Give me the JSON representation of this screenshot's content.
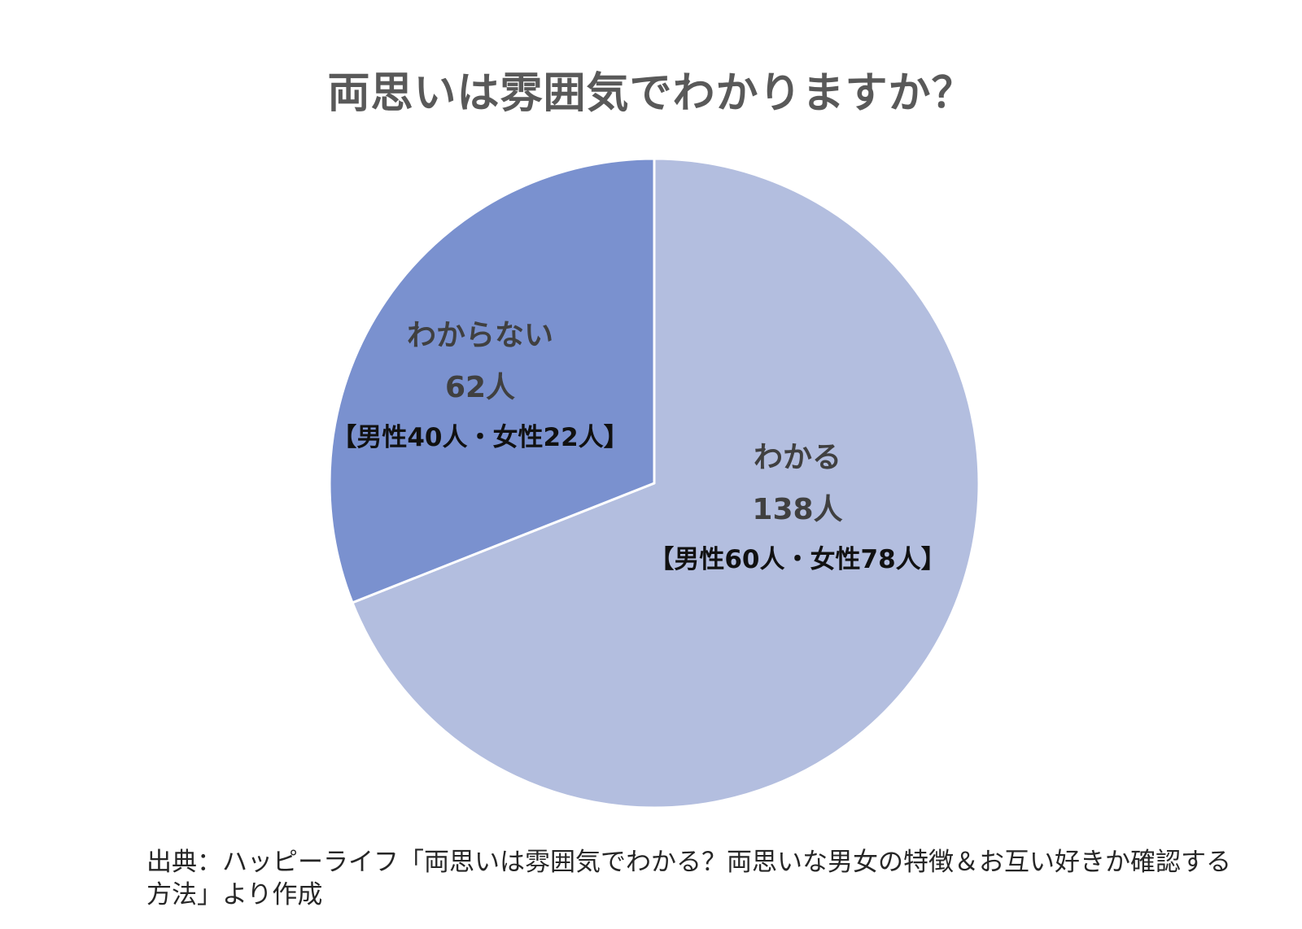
{
  "chart_data": {
    "type": "pie",
    "title": "両思いは雰囲気でわかりますか？",
    "slices": [
      {
        "label": "わかる",
        "value": 138,
        "value_text": "138人",
        "breakdown": "【男性60人・女性78人】",
        "color": "#b3bedf"
      },
      {
        "label": "わからない",
        "value": 62,
        "value_text": "62人",
        "breakdown": "【男性40人・女性22人】",
        "color": "#7a91cf"
      }
    ],
    "start_angle": "12 o'clock",
    "direction": "clockwise",
    "slice_border_color": "#ffffff"
  },
  "source": "出典：ハッピーライフ「両思いは雰囲気でわかる？両思いな男女の特徴＆お互い好きか確認する方法」より作成"
}
